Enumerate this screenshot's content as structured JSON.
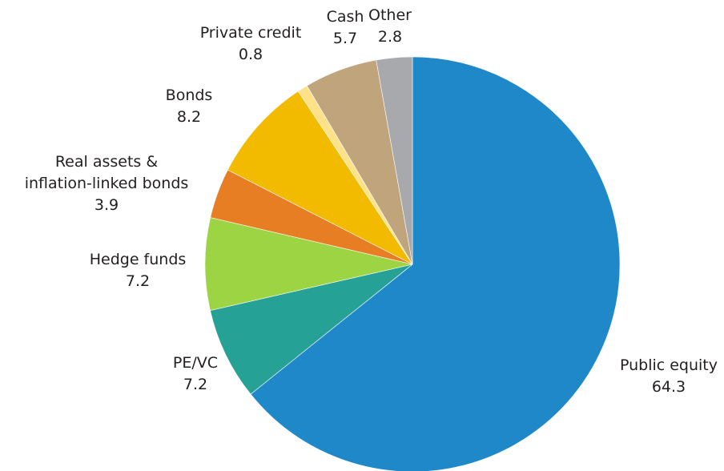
{
  "chart_data": {
    "type": "pie",
    "title": "",
    "start": "12 o'clock",
    "direction": "clockwise",
    "slices": [
      {
        "label": "Public equity",
        "value": 64.3,
        "display_value": "64.3",
        "color": "#1f88c9"
      },
      {
        "label": "PE/VC",
        "value": 7.2,
        "display_value": "7.2",
        "color": "#26a195"
      },
      {
        "label": "Hedge funds",
        "value": 7.2,
        "display_value": "7.2",
        "color": "#9dd443"
      },
      {
        "label": [
          "Real assets &",
          "inflation-linked bonds"
        ],
        "value": 3.9,
        "display_value": "3.9",
        "color": "#e87e24"
      },
      {
        "label": "Bonds",
        "value": 8.2,
        "display_value": "8.2",
        "color": "#f3bb00"
      },
      {
        "label": "Private credit",
        "value": 0.8,
        "display_value": "0.8",
        "color": "#fde28a"
      },
      {
        "label": "Cash",
        "value": 5.7,
        "display_value": "5.7",
        "color": "#bfa47c"
      },
      {
        "label": "Other",
        "value": 2.8,
        "display_value": "2.8",
        "color": "#a8a9ad"
      }
    ]
  }
}
